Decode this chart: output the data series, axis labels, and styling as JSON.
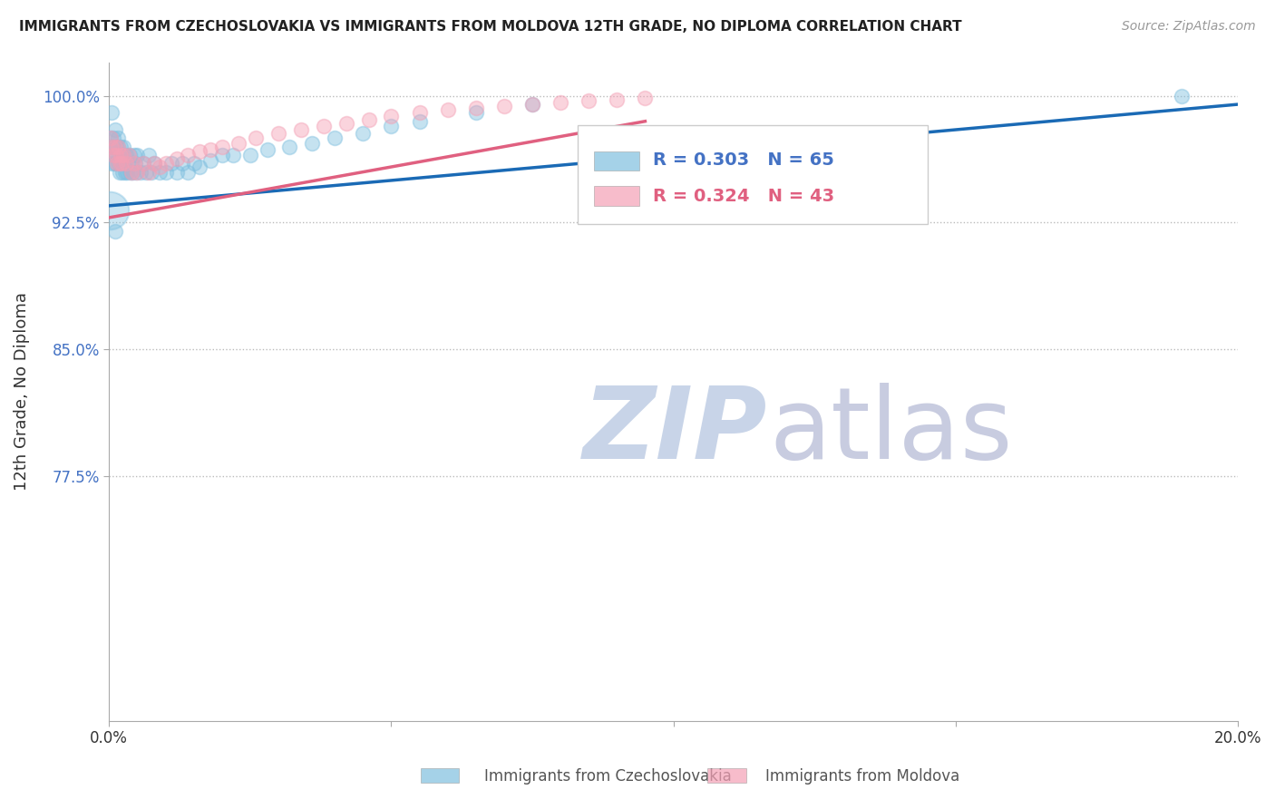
{
  "title": "IMMIGRANTS FROM CZECHOSLOVAKIA VS IMMIGRANTS FROM MOLDOVA 12TH GRADE, NO DIPLOMA CORRELATION CHART",
  "source": "Source: ZipAtlas.com",
  "ylabel": "12th Grade, No Diploma",
  "x_min": 0.0,
  "x_max": 0.2,
  "y_min": 0.63,
  "y_max": 1.02,
  "y_ticks": [
    0.775,
    0.85,
    0.925,
    1.0
  ],
  "y_tick_labels": [
    "77.5%",
    "85.0%",
    "92.5%",
    "100.0%"
  ],
  "legend_czech": "Immigrants from Czechoslovakia",
  "legend_moldova": "Immigrants from Moldova",
  "r_czech": 0.303,
  "n_czech": 65,
  "r_moldova": 0.324,
  "n_moldova": 43,
  "color_czech": "#7fbfdf",
  "color_moldova": "#f4a0b5",
  "color_czech_line": "#1a6ab5",
  "color_moldova_line": "#e06080",
  "czech_x": [
    0.0002,
    0.0003,
    0.0004,
    0.0005,
    0.0006,
    0.0007,
    0.0008,
    0.0009,
    0.001,
    0.0012,
    0.0013,
    0.0014,
    0.0015,
    0.0016,
    0.0017,
    0.0018,
    0.0019,
    0.002,
    0.0021,
    0.0022,
    0.0023,
    0.0025,
    0.0026,
    0.0027,
    0.0028,
    0.003,
    0.0032,
    0.0034,
    0.0036,
    0.0038,
    0.004,
    0.0042,
    0.0044,
    0.0046,
    0.0048,
    0.005,
    0.0055,
    0.006,
    0.0065,
    0.007,
    0.0075,
    0.008,
    0.009,
    0.01,
    0.011,
    0.012,
    0.013,
    0.014,
    0.015,
    0.016,
    0.018,
    0.02,
    0.022,
    0.025,
    0.028,
    0.032,
    0.036,
    0.04,
    0.045,
    0.05,
    0.055,
    0.065,
    0.075,
    0.19,
    0.001
  ],
  "czech_y": [
    0.975,
    0.97,
    0.96,
    0.99,
    0.97,
    0.965,
    0.975,
    0.96,
    0.98,
    0.97,
    0.96,
    0.965,
    0.97,
    0.975,
    0.96,
    0.965,
    0.955,
    0.97,
    0.965,
    0.96,
    0.955,
    0.965,
    0.97,
    0.96,
    0.955,
    0.965,
    0.955,
    0.96,
    0.965,
    0.955,
    0.96,
    0.955,
    0.965,
    0.96,
    0.955,
    0.965,
    0.955,
    0.96,
    0.955,
    0.965,
    0.955,
    0.96,
    0.955,
    0.955,
    0.96,
    0.955,
    0.96,
    0.955,
    0.96,
    0.958,
    0.962,
    0.965,
    0.965,
    0.965,
    0.968,
    0.97,
    0.972,
    0.975,
    0.978,
    0.982,
    0.985,
    0.99,
    0.995,
    1.0,
    0.92
  ],
  "moldova_x": [
    0.0003,
    0.0005,
    0.0007,
    0.001,
    0.0012,
    0.0014,
    0.0016,
    0.0018,
    0.002,
    0.0022,
    0.0025,
    0.003,
    0.0035,
    0.004,
    0.0045,
    0.005,
    0.006,
    0.007,
    0.008,
    0.009,
    0.01,
    0.012,
    0.014,
    0.016,
    0.018,
    0.02,
    0.023,
    0.026,
    0.03,
    0.034,
    0.038,
    0.042,
    0.046,
    0.05,
    0.055,
    0.06,
    0.065,
    0.07,
    0.075,
    0.08,
    0.085,
    0.09,
    0.095
  ],
  "moldova_y": [
    0.975,
    0.97,
    0.965,
    0.97,
    0.965,
    0.96,
    0.97,
    0.96,
    0.965,
    0.96,
    0.965,
    0.96,
    0.965,
    0.955,
    0.96,
    0.955,
    0.96,
    0.955,
    0.96,
    0.958,
    0.96,
    0.963,
    0.965,
    0.967,
    0.968,
    0.97,
    0.972,
    0.975,
    0.978,
    0.98,
    0.982,
    0.984,
    0.986,
    0.988,
    0.99,
    0.992,
    0.993,
    0.994,
    0.995,
    0.996,
    0.997,
    0.998,
    0.999
  ],
  "czech_line_x": [
    0.0,
    0.2
  ],
  "czech_line_y": [
    0.935,
    0.995
  ],
  "moldova_line_x": [
    0.0,
    0.095
  ],
  "moldova_line_y": [
    0.928,
    0.985
  ]
}
